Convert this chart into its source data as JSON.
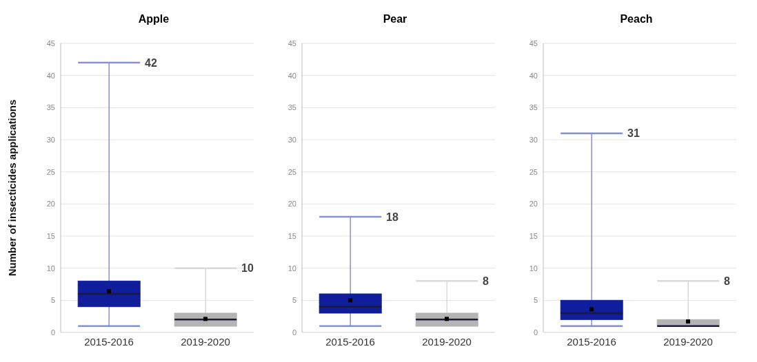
{
  "chart_data": [
    {
      "type": "box",
      "title": "Apple",
      "ylabel": "Number of insecticides applications",
      "categories": [
        "2015-2016",
        "2019-2020"
      ],
      "colors": [
        "#101e9c",
        "#b4b4b4"
      ],
      "boxes": [
        {
          "low": 1,
          "q1": 4,
          "median": 6,
          "q3": 8,
          "high": 42,
          "mean": 6.4
        },
        {
          "low": 1,
          "q1": 1,
          "median": 2,
          "q3": 3,
          "high": 10,
          "mean": 2.1
        }
      ],
      "ylim": [
        0,
        45
      ],
      "yticks": [
        0,
        5,
        10,
        15,
        20,
        25,
        30,
        35,
        40,
        45
      ],
      "grid": "y",
      "annotations": [
        "42",
        "10"
      ]
    },
    {
      "type": "box",
      "title": "Pear",
      "categories": [
        "2015-2016",
        "2019-2020"
      ],
      "colors": [
        "#101e9c",
        "#b4b4b4"
      ],
      "boxes": [
        {
          "low": 1,
          "q1": 3,
          "median": 4,
          "q3": 6,
          "high": 18,
          "mean": 5
        },
        {
          "low": 1,
          "q1": 1,
          "median": 2,
          "q3": 3,
          "high": 8,
          "mean": 2.1
        }
      ],
      "ylim": [
        0,
        45
      ],
      "yticks": [
        0,
        5,
        10,
        15,
        20,
        25,
        30,
        35,
        40,
        45
      ],
      "grid": "y",
      "annotations": [
        "18",
        "8"
      ]
    },
    {
      "type": "box",
      "title": "Peach",
      "categories": [
        "2015-2016",
        "2019-2020"
      ],
      "colors": [
        "#101e9c",
        "#b4b4b4"
      ],
      "boxes": [
        {
          "low": 1,
          "q1": 2,
          "median": 3,
          "q3": 5,
          "high": 31,
          "mean": 3.6
        },
        {
          "low": 1,
          "q1": 1,
          "median": 1,
          "q3": 2,
          "high": 8,
          "mean": 1.7
        }
      ],
      "ylim": [
        0,
        45
      ],
      "yticks": [
        0,
        5,
        10,
        15,
        20,
        25,
        30,
        35,
        40,
        45
      ],
      "grid": "y",
      "annotations": [
        "31",
        "8"
      ]
    }
  ]
}
